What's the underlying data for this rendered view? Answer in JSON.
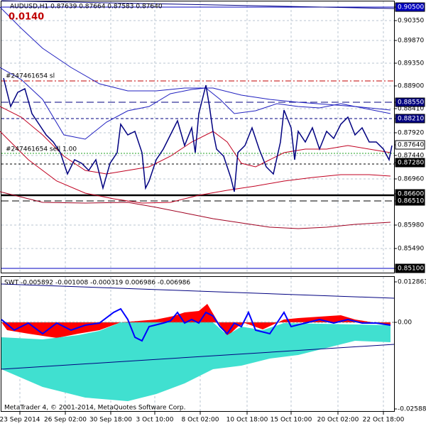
{
  "header": {
    "symbol_info": "AUDUSD,H1 0.87639 0.87664 0.87583 0.87640",
    "spread": "0.0140"
  },
  "order_labels": {
    "stop_loss": "#247461654 sl",
    "sell": "#247461654 sell 1.00"
  },
  "price_axis": [
    "0.90500",
    "0.90350",
    "0.89870",
    "0.89350",
    "0.88900",
    "0.88550",
    "0.88410",
    "0.88210",
    "0.87920",
    "0.87640",
    "0.87440",
    "0.87280",
    "0.86960",
    "0.86600",
    "0.86510",
    "0.85980",
    "0.85490",
    "0.85100"
  ],
  "indicator": {
    "label": "SWT -0.005892 -0.001008 -0.000319 0.006986 -0.006986",
    "axis": [
      "0.012861",
      "0.00",
      "-0.025883"
    ]
  },
  "time_axis": [
    "23 Sep 2014",
    "26 Sep 02:00",
    "30 Sep 18:00",
    "3 Oct 10:00",
    "8 Oct 02:00",
    "10 Oct 18:00",
    "15 Oct 10:00",
    "20 Oct 02:00",
    "22 Oct 18:00"
  ],
  "footer": "MetaTrader 4, © 2001-2014, MetaQuotes Software Corp."
}
